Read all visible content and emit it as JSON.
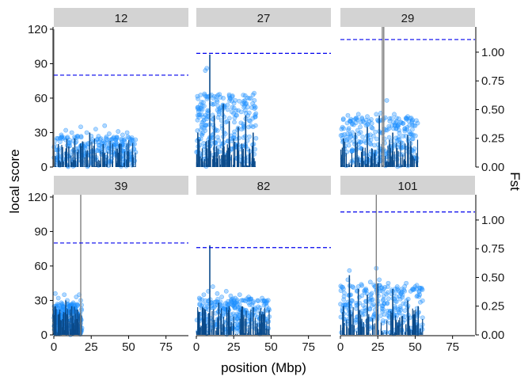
{
  "chart_data": {
    "type": "scatter",
    "xlabel": "position (Mbp)",
    "ylabel": "local score",
    "ylabel_right": "Fst",
    "xlim": [
      0,
      90
    ],
    "ylim": [
      0,
      122
    ],
    "x_ticks": [
      0,
      25,
      50,
      75
    ],
    "y_ticks": [
      0,
      30,
      60,
      90,
      120
    ],
    "y2_ticks": [
      0.0,
      0.25,
      0.5,
      0.75,
      1.0
    ],
    "y2_tick_labels": [
      "0.00",
      "0.25",
      "0.50",
      "0.75",
      "1.00"
    ],
    "y2lim": [
      0,
      1.22
    ],
    "colors": {
      "fst_points": "#1e90ff",
      "local_score": "#0a4a8a",
      "threshold": "#0000ee",
      "strip": "#d3d3d3",
      "spike": "#808080"
    },
    "panels": [
      {
        "label": "12",
        "threshold": 80,
        "chrom_length": 55,
        "fst_points": [
          [
            2,
            25
          ],
          [
            5,
            28
          ],
          [
            8,
            32
          ],
          [
            12,
            30
          ],
          [
            15,
            22
          ],
          [
            18,
            35
          ],
          [
            22,
            30
          ],
          [
            25,
            27
          ],
          [
            28,
            33
          ],
          [
            31,
            24
          ],
          [
            34,
            36
          ],
          [
            37,
            29
          ],
          [
            40,
            26
          ],
          [
            43,
            31
          ],
          [
            46,
            28
          ],
          [
            49,
            30
          ],
          [
            52,
            24
          ],
          [
            54,
            20
          ],
          [
            3,
            15
          ],
          [
            10,
            18
          ],
          [
            20,
            12
          ],
          [
            30,
            16
          ],
          [
            45,
            14
          ]
        ],
        "score_peaks": [
          [
            0,
            120
          ],
          [
            3,
            20
          ],
          [
            10,
            18
          ],
          [
            14,
            25
          ],
          [
            24,
            30
          ],
          [
            33,
            20
          ],
          [
            44,
            18
          ],
          [
            50,
            12
          ]
        ]
      },
      {
        "label": "27",
        "threshold": 99,
        "chrom_length": 40,
        "fst_points": [
          [
            1,
            45
          ],
          [
            4,
            50
          ],
          [
            6,
            84
          ],
          [
            7,
            86
          ],
          [
            9,
            62
          ],
          [
            12,
            55
          ],
          [
            15,
            48
          ],
          [
            18,
            60
          ],
          [
            21,
            50
          ],
          [
            24,
            52
          ],
          [
            27,
            45
          ],
          [
            30,
            48
          ],
          [
            33,
            42
          ],
          [
            36,
            40
          ],
          [
            38,
            35
          ],
          [
            22,
            63
          ],
          [
            26,
            58
          ],
          [
            14,
            57
          ]
        ],
        "score_peaks": [
          [
            1,
            30
          ],
          [
            9,
            98
          ],
          [
            12,
            45
          ],
          [
            18,
            55
          ],
          [
            22,
            40
          ],
          [
            28,
            35
          ],
          [
            33,
            45
          ],
          [
            38,
            30
          ]
        ]
      },
      {
        "label": "29",
        "threshold": 111,
        "chrom_length": 52,
        "fst_points": [
          [
            2,
            42
          ],
          [
            5,
            45
          ],
          [
            8,
            38
          ],
          [
            12,
            46
          ],
          [
            15,
            40
          ],
          [
            18,
            44
          ],
          [
            21,
            38
          ],
          [
            24,
            46
          ],
          [
            27,
            47
          ],
          [
            30,
            43
          ],
          [
            33,
            40
          ],
          [
            36,
            46
          ],
          [
            39,
            42
          ],
          [
            42,
            38
          ],
          [
            45,
            44
          ],
          [
            48,
            40
          ],
          [
            50,
            36
          ],
          [
            31,
            58
          ]
        ],
        "score_peaks": [
          [
            2,
            25
          ],
          [
            10,
            30
          ],
          [
            18,
            35
          ],
          [
            26,
            45
          ],
          [
            28,
            122
          ],
          [
            29,
            122
          ],
          [
            35,
            30
          ],
          [
            45,
            28
          ]
        ]
      },
      {
        "label": "39",
        "threshold": 80,
        "chrom_length": 19,
        "fst_points": [
          [
            1,
            36
          ],
          [
            3,
            32
          ],
          [
            5,
            28
          ],
          [
            7,
            35
          ],
          [
            9,
            30
          ],
          [
            11,
            25
          ],
          [
            13,
            28
          ],
          [
            15,
            33
          ],
          [
            17,
            35
          ],
          [
            18,
            30
          ],
          [
            2,
            20
          ],
          [
            8,
            22
          ],
          [
            14,
            18
          ]
        ],
        "score_peaks": [
          [
            1,
            25
          ],
          [
            4,
            20
          ],
          [
            8,
            30
          ],
          [
            12,
            25
          ],
          [
            16,
            22
          ],
          [
            18,
            122
          ]
        ]
      },
      {
        "label": "82",
        "threshold": 76,
        "chrom_length": 49,
        "fst_points": [
          [
            2,
            32
          ],
          [
            5,
            35
          ],
          [
            8,
            38
          ],
          [
            11,
            42
          ],
          [
            14,
            36
          ],
          [
            17,
            33
          ],
          [
            20,
            38
          ],
          [
            23,
            34
          ],
          [
            26,
            32
          ],
          [
            29,
            35
          ],
          [
            32,
            30
          ],
          [
            35,
            33
          ],
          [
            38,
            28
          ],
          [
            41,
            30
          ],
          [
            44,
            32
          ],
          [
            47,
            25
          ],
          [
            10,
            28
          ],
          [
            30,
            20
          ]
        ],
        "score_peaks": [
          [
            2,
            20
          ],
          [
            6,
            22
          ],
          [
            9,
            78
          ],
          [
            15,
            28
          ],
          [
            22,
            25
          ],
          [
            30,
            22
          ],
          [
            38,
            24
          ],
          [
            45,
            18
          ]
        ]
      },
      {
        "label": "101",
        "threshold": 107,
        "chrom_length": 55,
        "fst_points": [
          [
            2,
            40
          ],
          [
            5,
            48
          ],
          [
            8,
            42
          ],
          [
            11,
            38
          ],
          [
            14,
            44
          ],
          [
            17,
            40
          ],
          [
            20,
            46
          ],
          [
            23,
            42
          ],
          [
            26,
            48
          ],
          [
            29,
            40
          ],
          [
            32,
            45
          ],
          [
            35,
            38
          ],
          [
            38,
            42
          ],
          [
            41,
            40
          ],
          [
            44,
            45
          ],
          [
            47,
            38
          ],
          [
            50,
            42
          ],
          [
            53,
            35
          ],
          [
            6,
            56
          ],
          [
            24,
            58
          ]
        ],
        "score_peaks": [
          [
            2,
            25
          ],
          [
            6,
            52
          ],
          [
            12,
            40
          ],
          [
            18,
            35
          ],
          [
            24,
            122
          ],
          [
            25,
            45
          ],
          [
            35,
            40
          ],
          [
            45,
            30
          ],
          [
            52,
            25
          ]
        ]
      }
    ]
  }
}
